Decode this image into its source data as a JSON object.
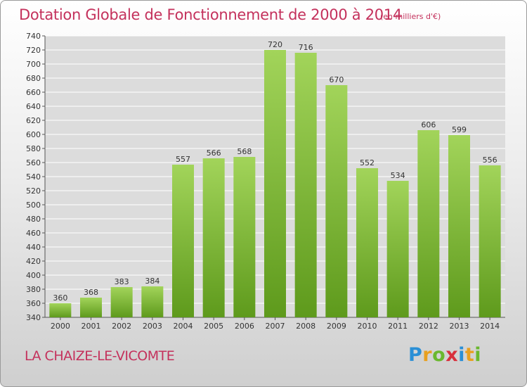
{
  "header": {
    "title": "Dotation Globale de Fonctionnement de 2000 à 2014",
    "unit": "(en milliers d'€)"
  },
  "footer": {
    "commune": "LA CHAIZE-LE-VICOMTE",
    "logo_letters": [
      "P",
      "r",
      "o",
      "x",
      "i",
      "t",
      "i"
    ],
    "logo_colors": [
      "#2a8fd6",
      "#e8a020",
      "#6ab82e",
      "#d8303c",
      "#2a8fd6",
      "#e8a020",
      "#6ab82e"
    ]
  },
  "colors": {
    "bar_light": "#a2d45a",
    "bar_dark": "#5e9a1c",
    "grid": "#ffffff",
    "accent": "#c4315c"
  },
  "chart_data": {
    "type": "bar",
    "title": "Dotation Globale de Fonctionnement de 2000 à 2014",
    "categories": [
      "2000",
      "2001",
      "2002",
      "2003",
      "2004",
      "2005",
      "2006",
      "2007",
      "2008",
      "2009",
      "2010",
      "2011",
      "2012",
      "2013",
      "2014"
    ],
    "values": [
      360,
      368,
      383,
      384,
      557,
      566,
      568,
      720,
      716,
      670,
      552,
      534,
      606,
      599,
      556
    ],
    "ylim": [
      340,
      740
    ],
    "yticks": [
      340,
      360,
      380,
      400,
      420,
      440,
      460,
      480,
      500,
      520,
      540,
      560,
      580,
      600,
      620,
      640,
      660,
      680,
      700,
      720,
      740
    ],
    "grid": true,
    "xlabel": "",
    "ylabel": ""
  }
}
